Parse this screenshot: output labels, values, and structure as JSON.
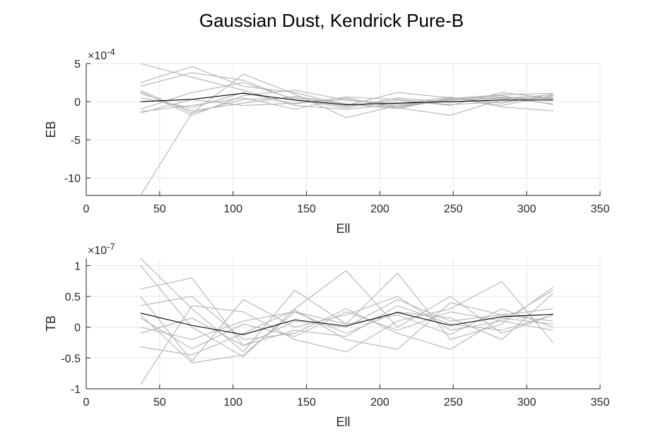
{
  "figure": {
    "title": "Gaussian Dust, Kendrick Pure-B"
  },
  "chart_data": [
    {
      "type": "line",
      "ylabel": "EB",
      "xlabel": "Ell",
      "exponent_label": "×10",
      "exponent_power": "-4",
      "xlim": [
        0,
        350
      ],
      "ylim": [
        -12.3,
        5
      ],
      "xticks": [
        0,
        50,
        100,
        150,
        200,
        250,
        300,
        350
      ],
      "xtick_labels": [
        "0",
        "50",
        "100",
        "150",
        "200",
        "250",
        "300",
        "350"
      ],
      "yticks": [
        5,
        0,
        -5,
        -10
      ],
      "ytick_labels": [
        "5",
        "0",
        "-5",
        "-10"
      ],
      "grid": true,
      "realization_color": "#b3b3b3",
      "mean_color": "#000000",
      "x": [
        37,
        72,
        107,
        142,
        177,
        212,
        248,
        283,
        318
      ],
      "series": [
        {
          "values": [
            5.0,
            3.2,
            1.5,
            -0.5,
            -1.0,
            -0.3,
            0.2,
            0.6,
            0.3
          ]
        },
        {
          "values": [
            2.5,
            4.6,
            2.0,
            1.2,
            -0.5,
            1.2,
            0.5,
            -0.5,
            0.8
          ]
        },
        {
          "values": [
            1.5,
            -1.5,
            3.6,
            1.0,
            -2.1,
            -0.5,
            0.3,
            0.8,
            -0.4
          ]
        },
        {
          "values": [
            -1.3,
            -0.5,
            0.5,
            -1.0,
            0.5,
            -0.8,
            -1.8,
            0.3,
            0.6
          ]
        },
        {
          "values": [
            -12.3,
            -1.5,
            0.3,
            0.5,
            -0.3,
            -0.8,
            0.5,
            -0.2,
            1.0
          ]
        },
        {
          "values": [
            -1.0,
            1.2,
            2.5,
            0.3,
            -0.6,
            0.2,
            -0.5,
            1.2,
            0.4
          ]
        },
        {
          "values": [
            1.3,
            -1.8,
            0.8,
            1.5,
            0.2,
            -0.3,
            0.6,
            -0.7,
            -1.2
          ]
        },
        {
          "values": [
            2.0,
            3.8,
            2.8,
            0.2,
            -0.8,
            0.5,
            -0.1,
            0.4,
            0.9
          ]
        },
        {
          "values": [
            -1.5,
            0.3,
            -0.5,
            -0.2,
            0.3,
            -0.6,
            0.2,
            0.5,
            -0.3
          ]
        },
        {
          "values": [
            0.5,
            -0.8,
            1.2,
            -0.3,
            0.6,
            0.3,
            -0.4,
            0.0,
            0.5
          ]
        },
        {
          "values": [
            1.1,
            -1.2,
            -0.2,
            0.7,
            -0.3,
            -0.9,
            0.4,
            0.9,
            1.1
          ]
        }
      ],
      "mean": [
        0.0,
        0.3,
        1.1,
        0.2,
        -0.4,
        -0.2,
        0.0,
        0.2,
        0.2
      ]
    },
    {
      "type": "line",
      "ylabel": "TB",
      "xlabel": "Ell",
      "exponent_label": "×10",
      "exponent_power": "-7",
      "xlim": [
        0,
        350
      ],
      "ylim": [
        -1,
        1.12
      ],
      "xticks": [
        0,
        50,
        100,
        150,
        200,
        250,
        300,
        350
      ],
      "xtick_labels": [
        "0",
        "50",
        "100",
        "150",
        "200",
        "250",
        "300",
        "350"
      ],
      "yticks": [
        1,
        0.5,
        0,
        -0.5,
        -1
      ],
      "ytick_labels": [
        "1",
        "0.5",
        "0",
        "-0.5",
        "-1"
      ],
      "grid": true,
      "realization_color": "#b3b3b3",
      "mean_color": "#000000",
      "x": [
        37,
        72,
        107,
        142,
        177,
        212,
        248,
        283,
        318
      ],
      "series": [
        {
          "values": [
            1.12,
            0.3,
            -0.4,
            0.6,
            0.05,
            0.88,
            -0.2,
            0.05,
            0.65
          ]
        },
        {
          "values": [
            1.0,
            0.0,
            -0.48,
            0.3,
            0.92,
            0.0,
            0.5,
            -0.1,
            0.2
          ]
        },
        {
          "values": [
            0.62,
            0.8,
            -0.3,
            0.1,
            0.0,
            0.45,
            0.1,
            0.2,
            0.1
          ]
        },
        {
          "values": [
            -0.93,
            0.35,
            0.25,
            -0.2,
            -0.4,
            0.1,
            0.3,
            0.74,
            -0.25
          ]
        },
        {
          "values": [
            0.5,
            -0.55,
            0.45,
            0.0,
            0.2,
            0.5,
            -0.05,
            0.1,
            0.6
          ]
        },
        {
          "values": [
            -0.32,
            -0.45,
            -0.1,
            0.28,
            -0.2,
            -0.36,
            0.4,
            0.2,
            0.3
          ]
        },
        {
          "values": [
            0.2,
            -0.58,
            -0.45,
            0.25,
            -0.1,
            0.25,
            0.15,
            -0.2,
            0.55
          ]
        },
        {
          "values": [
            0.35,
            0.5,
            -0.2,
            -0.1,
            0.3,
            -0.1,
            -0.36,
            0.15,
            0.05
          ]
        },
        {
          "values": [
            0.0,
            -0.2,
            0.1,
            0.25,
            0.05,
            0.2,
            -0.12,
            0.3,
            0.0
          ]
        },
        {
          "values": [
            -0.1,
            0.15,
            -0.3,
            -0.05,
            -0.15,
            0.35,
            0.05,
            -0.05,
            0.2
          ]
        },
        {
          "values": [
            0.15,
            -0.35,
            0.05,
            -0.15,
            0.25,
            -0.05,
            0.25,
            0.1,
            -0.05
          ]
        }
      ],
      "mean": [
        0.23,
        0.03,
        -0.12,
        0.12,
        0.02,
        0.24,
        0.03,
        0.17,
        0.21
      ]
    }
  ]
}
